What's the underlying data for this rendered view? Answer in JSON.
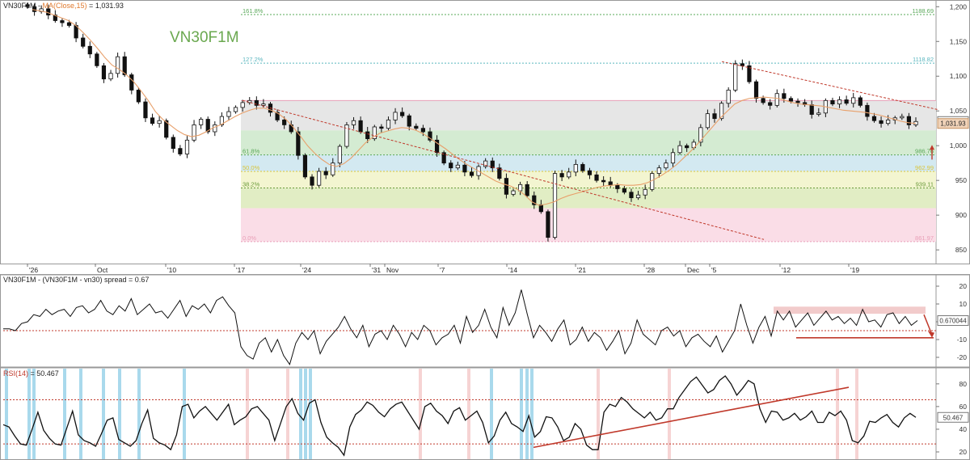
{
  "chart_data": [
    {
      "type": "candlestick",
      "panel": "price",
      "header": {
        "symbol": "VN30F1M",
        "ma_label": "MA(Close,15)",
        "eq": "=",
        "close_value": "1,031.93"
      },
      "watermark": "VN30F1M",
      "x_ticks": [
        "26",
        "Oct",
        "10",
        "17",
        "24",
        "31",
        "Nov",
        "7",
        "14",
        "21",
        "28",
        "Dec",
        "5",
        "12",
        "19"
      ],
      "y_ticks": [
        "1,200",
        "1,150",
        "1,100",
        "1,050",
        "1,000",
        "950",
        "900",
        "850"
      ],
      "ylim": [
        835,
        1205
      ],
      "fibonacci": {
        "levels": [
          {
            "ratio": "161.8%",
            "value": "1188.69",
            "price": 1188.69,
            "color": "#5aa85a"
          },
          {
            "ratio": "127.2%",
            "value": "1118.82",
            "price": 1118.82,
            "color": "#5ab6bf"
          },
          {
            "ratio": "61.8%",
            "value": "986.76",
            "price": 986.76,
            "color": "#5aa85a"
          },
          {
            "ratio": "50.0%",
            "value": "962.99",
            "price": 962.99,
            "color": "#d9c53a"
          },
          {
            "ratio": "38.2%",
            "value": "939.11",
            "price": 939.11,
            "color": "#6a9a3a"
          },
          {
            "ratio": "0.0%",
            "value": "861.97",
            "price": 861.97,
            "color": "#e9a0b8"
          }
        ],
        "top_level": 1065.0,
        "bands": [
          {
            "from": 1065,
            "to": 1022,
            "color": "#e6e6e6"
          },
          {
            "from": 1022,
            "to": 986.76,
            "color": "#d4ebd2"
          },
          {
            "from": 986.76,
            "to": 962.99,
            "color": "#d3e9f1"
          },
          {
            "from": 962.99,
            "to": 939.11,
            "color": "#f3f5d0"
          },
          {
            "from": 939.11,
            "to": 910,
            "color": "#e1edc4"
          },
          {
            "from": 910,
            "to": 861.97,
            "color": "#fadde7"
          }
        ]
      },
      "price_labels": [
        {
          "value": "1,034.8",
          "price": 1034.8,
          "bg": "#ffffff",
          "fg": "#222222",
          "border": "#777777"
        },
        {
          "value": "1,031.93",
          "price": 1031.93,
          "bg": "#f0d2b8",
          "fg": "#222222",
          "border": "#c49060"
        }
      ],
      "closes": [
        1200,
        1193,
        1197,
        1188,
        1180,
        1177,
        1173,
        1155,
        1143,
        1132,
        1115,
        1096,
        1104,
        1128,
        1102,
        1080,
        1063,
        1040,
        1032,
        1036,
        1012,
        996,
        988,
        1008,
        1030,
        1038,
        1020,
        1030,
        1042,
        1049,
        1055,
        1062,
        1065,
        1058,
        1060,
        1048,
        1037,
        1030,
        1020,
        986,
        955,
        943,
        963,
        958,
        975,
        999,
        1030,
        1036,
        1020,
        1010,
        1027,
        1025,
        1037,
        1048,
        1043,
        1028,
        1025,
        1020,
        1008,
        990,
        975,
        968,
        972,
        962,
        957,
        970,
        978,
        968,
        953,
        930,
        935,
        944,
        928,
        915,
        905,
        868,
        960,
        955,
        962,
        973,
        964,
        958,
        950,
        948,
        943,
        938,
        933,
        925,
        929,
        937,
        960,
        968,
        975,
        990,
        1000,
        997,
        1005,
        1026,
        1046,
        1039,
        1061,
        1080,
        1118,
        1115,
        1092,
        1068,
        1062,
        1058,
        1075,
        1068,
        1064,
        1062,
        1059,
        1045,
        1047,
        1065,
        1060,
        1066,
        1061,
        1069,
        1058,
        1042,
        1036,
        1032,
        1037,
        1040,
        1042,
        1030,
        1034.8
      ],
      "ma": [
        1196,
        1194,
        1192,
        1188,
        1184,
        1180,
        1173,
        1163,
        1152,
        1140,
        1127,
        1116,
        1110,
        1102,
        1092,
        1079,
        1065,
        1049,
        1038,
        1030,
        1022,
        1016,
        1013,
        1015,
        1020,
        1026,
        1030,
        1036,
        1042,
        1047,
        1051,
        1054,
        1054,
        1051,
        1046,
        1038,
        1027,
        1014,
        1000,
        989,
        980,
        973,
        970,
        974,
        982,
        993,
        1004,
        1012,
        1018,
        1021,
        1024,
        1026,
        1025,
        1022,
        1017,
        1010,
        1003,
        996,
        988,
        980,
        973,
        967,
        961,
        955,
        949,
        945,
        942,
        937,
        929,
        919,
        914,
        916,
        919,
        924,
        928,
        931,
        934,
        937,
        940,
        942,
        943,
        944,
        943,
        943,
        944,
        947,
        952,
        958,
        965,
        973,
        983,
        993,
        1004,
        1016,
        1028,
        1040,
        1050,
        1060,
        1065,
        1068,
        1069,
        1070,
        1069,
        1068,
        1065,
        1062,
        1060,
        1059,
        1058,
        1057,
        1055,
        1053,
        1051,
        1050,
        1049,
        1048,
        1046,
        1044,
        1041,
        1038,
        1035,
        1033,
        1031.93
      ],
      "trendlines": [
        {
          "from": [
            300,
            1065
          ],
          "to": [
            945,
            865
          ],
          "color": "#c0392b"
        },
        {
          "from": [
            893,
            1121
          ],
          "to": [
            1160,
            1052
          ],
          "color": "#c0392b"
        }
      ]
    },
    {
      "type": "line",
      "panel": "spread",
      "header": "VN30F1M - (VN30F1M - vn30) spread = 0.67",
      "y_ticks": [
        "20",
        "10",
        "0",
        "-10",
        "-20"
      ],
      "ylim": [
        -25,
        25
      ],
      "ref_level": -5,
      "last_label": "0.670044",
      "values": [
        -4,
        -4,
        -5,
        -1,
        0,
        4,
        3,
        7,
        4,
        6,
        7,
        3,
        8,
        9,
        5,
        7,
        12,
        6,
        4,
        9,
        6,
        13,
        4,
        7,
        10,
        5,
        6,
        2,
        7,
        12,
        3,
        9,
        7,
        10,
        5,
        12,
        14,
        9,
        5,
        -14,
        -19,
        -21,
        -12,
        -9,
        -17,
        -10,
        -19,
        -24,
        -12,
        -6,
        -10,
        -5,
        -18,
        -11,
        -7,
        -3,
        3,
        -4,
        -9,
        -2,
        -14,
        -7,
        -5,
        -10,
        -2,
        -7,
        -14,
        -6,
        -10,
        -2,
        -5,
        -13,
        -9,
        -7,
        -2,
        -12,
        3,
        -6,
        -2,
        7,
        -3,
        -9,
        8,
        -2,
        5,
        18,
        4,
        -9,
        -2,
        -6,
        -11,
        -4,
        1,
        -13,
        -10,
        -3,
        -11,
        -6,
        -9,
        -16,
        -11,
        -5,
        -18,
        -12,
        1,
        -7,
        -10,
        -13,
        -5,
        -3,
        -8,
        -5,
        -14,
        -9,
        -7,
        -11,
        -14,
        -8,
        -17,
        -11,
        -5,
        10,
        -2,
        -12,
        -3,
        3,
        -8,
        6,
        1,
        6,
        -3,
        1,
        5,
        -2,
        2,
        6,
        1,
        3,
        -1,
        2,
        -2,
        7,
        0,
        1,
        -3,
        4,
        5,
        -1,
        3,
        -2,
        0.67
      ],
      "annotations": [
        {
          "kind": "band",
          "y1": 8.5,
          "y2": 4.5,
          "x1": 957,
          "x2": 1145,
          "color": "#e8a0a0"
        },
        {
          "kind": "line",
          "y": -9,
          "x1": 985,
          "x2": 1155,
          "color": "#c0392b"
        },
        {
          "kind": "arrow",
          "from": [
            1143,
            4
          ],
          "to": [
            1152,
            -8
          ],
          "color": "#c0392b"
        }
      ]
    },
    {
      "type": "line",
      "panel": "rsi",
      "header_name": "RSI(14)",
      "header_value": " = 50.467",
      "y_ticks": [
        "80",
        "60",
        "40",
        "20"
      ],
      "ylim": [
        15,
        92
      ],
      "overbought": 66,
      "oversold": 27,
      "last_label": "50.467",
      "values": [
        44,
        42,
        34,
        27,
        26,
        40,
        55,
        39,
        32,
        27,
        26,
        41,
        56,
        35,
        30,
        28,
        25,
        36,
        48,
        50,
        31,
        28,
        25,
        30,
        45,
        57,
        32,
        28,
        26,
        22,
        35,
        60,
        62,
        50,
        56,
        60,
        54,
        48,
        55,
        62,
        44,
        48,
        51,
        58,
        60,
        54,
        48,
        30,
        45,
        60,
        67,
        54,
        48,
        63,
        66,
        46,
        33,
        28,
        24,
        17,
        42,
        53,
        57,
        64,
        61,
        55,
        51,
        58,
        62,
        64,
        56,
        48,
        40,
        60,
        63,
        56,
        52,
        45,
        56,
        59,
        48,
        52,
        56,
        46,
        28,
        34,
        48,
        55,
        45,
        42,
        38,
        52,
        33,
        38,
        51,
        50,
        42,
        30,
        33,
        45,
        40,
        26,
        22,
        22,
        55,
        62,
        60,
        68,
        64,
        58,
        54,
        50,
        55,
        48,
        50,
        58,
        58,
        68,
        75,
        82,
        86,
        79,
        72,
        75,
        83,
        87,
        80,
        70,
        76,
        83,
        80,
        58,
        46,
        56,
        55,
        48,
        50,
        54,
        48,
        51,
        56,
        46,
        46,
        55,
        52,
        56,
        48,
        30,
        28,
        34,
        47,
        46,
        50,
        53,
        46,
        42,
        50,
        54,
        50.467
      ],
      "trendline": {
        "from": [
          660,
          24
        ],
        "to": [
          1050,
          77
        ],
        "color": "#c0392b"
      },
      "blue_bars": [
        8,
        36,
        42,
        80,
        100,
        128,
        148,
        172,
        228,
        372,
        378,
        384,
        608,
        645,
        652,
        658
      ],
      "pink_bars": [
        306,
        356,
        520,
        580,
        740,
        828,
        1036,
        1060
      ]
    }
  ]
}
